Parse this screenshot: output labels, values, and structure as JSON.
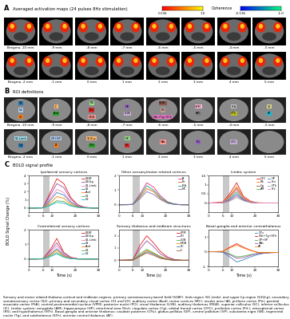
{
  "slice_labels": [
    "Bregma -10 mm",
    "-9 mm",
    "-8 mm",
    "-7 mm",
    "-6 mm",
    "-5 mm",
    "-4 mm",
    "-3 mm",
    "Bregma -2 mm",
    "-1 mm",
    "0 mm",
    "1 mm",
    "2 mm",
    "3 mm",
    "4 mm",
    "5 mm"
  ],
  "panel_a": {
    "letter": "A",
    "title": "Averaged activation maps (24 pulses 8Hz stimulation)",
    "colorbar_label": "Coherence",
    "colorbars": [
      {
        "range": [
          0.136,
          1.0
        ],
        "ticks": [
          0.136,
          {
            "value": 1.0,
            "label": "1.0"
          }
        ],
        "color": "autumn"
      },
      {
        "range": [
          -0.136,
          -1.0
        ],
        "ticks": [
          -0.136,
          {
            "value": -1.0,
            "label": "-1.0"
          }
        ],
        "color": "winter"
      }
    ]
  },
  "panel_b": {
    "letter": "B",
    "title": "ROI definitions",
    "rois": [
      [
        "V1",
        "V2",
        "SC"
      ],
      [
        "IC",
        "Aud"
      ],
      [
        "RS",
        "Ent",
        "MGB"
      ],
      [
        "HP",
        "LGN"
      ],
      [
        "S1BF",
        "PO",
        "SNr+Tg+STh"
      ],
      [
        "VPM",
        "AM"
      ],
      [
        "PtA",
        "HTh"
      ],
      [
        "S2",
        "AT"
      ],
      [
        "S1-Limb",
        "Cg"
      ],
      [
        "GP+VP",
        "IA"
      ],
      [
        "S1ULp",
        "CPu"
      ],
      [
        "MC",
        "Pir"
      ],
      [
        "NAc"
      ],
      [
        "PrL"
      ],
      [
        "OFC"
      ],
      []
    ]
  },
  "panel_c": {
    "letter": "C",
    "title": "BOLD signal profile",
    "ylabel": "BOLD Signal Change (%)"
  },
  "chart_data": [
    {
      "type": "line",
      "title": "Ipsilateral sensory cortices",
      "x": [
        0,
        3,
        6,
        9,
        12,
        15,
        18,
        21,
        24,
        27,
        30
      ],
      "xlim": [
        0,
        30
      ],
      "xticks": [
        0,
        6,
        10,
        20,
        30
      ],
      "ylim": [
        -0.5,
        4
      ],
      "yticks": [
        0,
        1,
        2,
        3,
        4
      ],
      "stimulus_window": [
        6,
        9
      ],
      "legend": "upper right",
      "series": [
        {
          "name": "S1BF",
          "color": "#e41a1c",
          "values": [
            0,
            0.02,
            0.05,
            1.8,
            3.6,
            3.0,
            1.3,
            0.4,
            0.1,
            0.02,
            0
          ]
        },
        {
          "name": "S1ULp",
          "color": "#984ea3",
          "values": [
            0,
            0.01,
            0.04,
            1.5,
            3.0,
            2.5,
            1.1,
            0.35,
            0.08,
            0.02,
            0
          ]
        },
        {
          "name": "S1-Limb",
          "color": "#f781bf",
          "values": [
            0,
            0,
            0.03,
            1.1,
            2.3,
            1.9,
            0.8,
            0.25,
            0.06,
            0,
            0
          ]
        },
        {
          "name": "S2",
          "color": "#377eb8",
          "values": [
            0,
            0.01,
            0.03,
            0.9,
            1.9,
            1.6,
            0.7,
            0.2,
            0.05,
            0,
            -0.02
          ]
        },
        {
          "name": "Aud",
          "color": "#ff7f00",
          "values": [
            0,
            0,
            0.02,
            0.6,
            1.4,
            1.2,
            0.5,
            0.15,
            0.03,
            0,
            0
          ]
        },
        {
          "name": "V1",
          "color": "#4daf4a",
          "values": [
            0,
            0,
            0.01,
            0.4,
            0.9,
            0.8,
            0.35,
            0.1,
            0.02,
            0,
            0
          ]
        },
        {
          "name": "V2",
          "color": "#1fb4c8",
          "values": [
            0,
            0,
            0.01,
            0.3,
            0.7,
            0.6,
            0.25,
            0.08,
            0.02,
            0,
            0
          ]
        }
      ]
    },
    {
      "type": "line",
      "title": "Other sensory/motor related cortices",
      "x": [
        0,
        3,
        6,
        9,
        12,
        15,
        18,
        21,
        24,
        27,
        30
      ],
      "xlim": [
        0,
        30
      ],
      "xticks": [
        0,
        6,
        10,
        20,
        30
      ],
      "ylim": [
        -0.5,
        2
      ],
      "yticks": [
        0,
        1,
        2
      ],
      "stimulus_window": [
        6,
        9
      ],
      "legend": "upper right",
      "series": [
        {
          "name": "IA",
          "color": "#e7298a",
          "values": [
            0,
            0.02,
            0.04,
            0.7,
            1.5,
            1.2,
            0.6,
            0.2,
            0.05,
            0,
            0
          ]
        },
        {
          "name": "Pir",
          "color": "#d95f02",
          "values": [
            0,
            0,
            0.02,
            0.5,
            1.1,
            0.9,
            0.4,
            0.15,
            0.03,
            0,
            0
          ]
        },
        {
          "name": "PtA",
          "color": "#1b9e77",
          "values": [
            0,
            0.01,
            0.03,
            0.6,
            1.3,
            1.0,
            0.5,
            0.18,
            0.05,
            0.01,
            0
          ]
        },
        {
          "name": "MC",
          "color": "#7570b3",
          "values": [
            0,
            0,
            0.02,
            0.4,
            0.9,
            0.7,
            0.35,
            0.1,
            0.02,
            0,
            0
          ]
        }
      ]
    },
    {
      "type": "line",
      "title": "Limbic system",
      "x": [
        0,
        3,
        6,
        9,
        12,
        15,
        18,
        21,
        24,
        27,
        30
      ],
      "xlim": [
        0,
        30
      ],
      "xticks": [
        0,
        6,
        10,
        20,
        30
      ],
      "ylim": [
        -0.5,
        1.5
      ],
      "yticks": [
        0,
        0.5,
        1,
        1.5
      ],
      "stimulus_window": [
        6,
        9
      ],
      "legend": "upper right",
      "series": [
        {
          "name": "OFC",
          "color": "#e41a1c",
          "values": [
            0,
            0.02,
            0.05,
            0.5,
            1.1,
            0.35,
            0.1,
            0,
            0,
            0,
            0
          ]
        },
        {
          "name": "RS",
          "color": "#ff7f00",
          "values": [
            0,
            0.01,
            0.03,
            0.4,
            0.9,
            0.3,
            0.08,
            0.02,
            0,
            0,
            0
          ]
        },
        {
          "name": "Cg",
          "color": "#a65628",
          "values": [
            0,
            0,
            0.02,
            0.35,
            0.8,
            0.25,
            0.05,
            0,
            0,
            0,
            0
          ]
        },
        {
          "name": "AM",
          "color": "#4daf4a",
          "values": [
            0,
            0,
            0.01,
            0.25,
            0.6,
            0.2,
            0.05,
            0,
            0,
            0,
            0
          ]
        },
        {
          "name": "HP",
          "color": "#377eb8",
          "values": [
            0,
            0,
            0.01,
            0.2,
            0.5,
            0.18,
            0.04,
            0,
            0,
            0,
            0
          ]
        },
        {
          "name": "Ent",
          "color": "#984ea3",
          "values": [
            0,
            0,
            0.01,
            0.15,
            0.4,
            0.15,
            0.03,
            0,
            0,
            0,
            0
          ]
        },
        {
          "name": "HTh",
          "color": "#999999",
          "values": [
            0,
            0,
            0,
            0.1,
            0.3,
            0.12,
            0.02,
            0,
            0,
            0,
            0
          ]
        },
        {
          "name": "PrL",
          "color": "#f781bf",
          "values": [
            0,
            0.01,
            0.02,
            0.3,
            0.7,
            0.25,
            0.06,
            0.01,
            0,
            0,
            0
          ]
        }
      ]
    },
    {
      "type": "line",
      "title": "Contralateral sensory cortices",
      "x": [
        0,
        3,
        6,
        9,
        12,
        15,
        18,
        21,
        24,
        27,
        30
      ],
      "xlim": [
        0,
        30
      ],
      "xticks": [
        0,
        6,
        10,
        20,
        30
      ],
      "ylim": [
        -0.5,
        2
      ],
      "yticks": [
        0,
        1,
        2
      ],
      "stimulus_window": [
        6,
        9
      ],
      "legend": "upper right",
      "xlabel": "Time (s)",
      "series": [
        {
          "name": "S1BF",
          "color": "#e41a1c",
          "values": [
            0,
            0.01,
            0.03,
            0.6,
            1.4,
            0.45,
            0.12,
            0.02,
            0,
            0,
            0
          ]
        },
        {
          "name": "S1ULp",
          "color": "#984ea3",
          "values": [
            0,
            0,
            0.02,
            0.5,
            1.1,
            0.4,
            0.1,
            0.02,
            0,
            0,
            0
          ]
        },
        {
          "name": "S1-Limb",
          "color": "#f781bf",
          "values": [
            0,
            0,
            0.02,
            0.4,
            0.9,
            0.3,
            0.08,
            0,
            0,
            0,
            0
          ]
        },
        {
          "name": "S2",
          "color": "#377eb8",
          "values": [
            0,
            0,
            0.01,
            0.3,
            0.7,
            0.25,
            0.05,
            0,
            0,
            0,
            0
          ]
        },
        {
          "name": "Aud",
          "color": "#ff7f00",
          "values": [
            0,
            0,
            0.01,
            0.25,
            0.6,
            0.2,
            0.05,
            0,
            0,
            0,
            0
          ]
        },
        {
          "name": "V1",
          "color": "#4daf4a",
          "values": [
            0,
            0,
            0.01,
            0.2,
            0.45,
            0.15,
            0.03,
            0,
            0,
            0,
            0
          ]
        },
        {
          "name": "V2",
          "color": "#1fb4c8",
          "values": [
            0,
            0,
            0,
            0.15,
            0.35,
            0.12,
            0.02,
            0,
            0,
            0,
            0
          ]
        }
      ]
    },
    {
      "type": "line",
      "title": "Sensory thalamus and midbrain structures",
      "x": [
        0,
        3,
        6,
        9,
        12,
        15,
        18,
        21,
        24,
        27,
        30
      ],
      "xlim": [
        0,
        30
      ],
      "xticks": [
        0,
        6,
        10,
        20,
        30
      ],
      "ylim": [
        -0.5,
        2.5
      ],
      "yticks": [
        0,
        1,
        2
      ],
      "stimulus_window": [
        6,
        9
      ],
      "legend": "upper right",
      "xlabel": "Time (s)",
      "series": [
        {
          "name": "VPM",
          "color": "#e41a1c",
          "values": [
            0,
            0.02,
            0.05,
            1.2,
            2.0,
            1.4,
            0.7,
            0.25,
            0.06,
            0,
            0
          ]
        },
        {
          "name": "PO",
          "color": "#984ea3",
          "values": [
            0,
            0.01,
            0.04,
            0.9,
            1.6,
            1.1,
            0.5,
            0.2,
            0.05,
            0,
            0
          ]
        },
        {
          "name": "LGN",
          "color": "#4daf4a",
          "values": [
            0,
            0,
            0.02,
            0.5,
            0.9,
            0.6,
            0.3,
            0.1,
            0.02,
            0,
            0
          ]
        },
        {
          "name": "MGB",
          "color": "#ff7f00",
          "values": [
            0,
            0,
            0.02,
            0.4,
            0.8,
            0.55,
            0.25,
            0.08,
            0,
            0,
            0
          ]
        },
        {
          "name": "SC",
          "color": "#377eb8",
          "values": [
            0,
            0,
            0.01,
            0.35,
            0.7,
            0.5,
            0.2,
            0.05,
            0,
            0,
            0
          ]
        },
        {
          "name": "IC",
          "color": "#a65628",
          "values": [
            0,
            0,
            0.01,
            0.3,
            0.6,
            0.4,
            0.15,
            0.05,
            0,
            0,
            0
          ]
        }
      ]
    },
    {
      "type": "line",
      "title": "Basal-ganglia and anterior centrathalamus",
      "x": [
        0,
        3,
        6,
        9,
        12,
        15,
        18,
        21,
        24,
        27,
        30
      ],
      "xlim": [
        0,
        30
      ],
      "xticks": [
        0,
        6,
        10,
        20,
        30
      ],
      "ylim": [
        -1,
        1.5
      ],
      "yticks": [
        -1,
        0,
        1
      ],
      "stimulus_window": [
        6,
        9
      ],
      "legend": "upper right",
      "xlabel": "Time (s)",
      "series": [
        {
          "name": "CPu",
          "color": "#377eb8",
          "values": [
            0,
            -0.01,
            -0.03,
            -0.35,
            -0.7,
            -0.55,
            -0.35,
            -0.2,
            -0.1,
            -0.06,
            -0.05
          ]
        },
        {
          "name": "SNr+Tg+STh",
          "color": "#e41a1c",
          "values": [
            0,
            0.01,
            0.02,
            0.3,
            0.55,
            0.3,
            0.1,
            -0.05,
            -0.08,
            -0.06,
            -0.05
          ]
        },
        {
          "name": "GP+VP",
          "color": "#4daf4a",
          "values": [
            0,
            0,
            -0.01,
            -0.15,
            -0.35,
            -0.3,
            -0.2,
            -0.12,
            -0.08,
            -0.06,
            -0.05
          ]
        },
        {
          "name": "NAc",
          "color": "#984ea3",
          "values": [
            0,
            0,
            -0.01,
            -0.2,
            -0.45,
            -0.4,
            -0.25,
            -0.12,
            -0.08,
            -0.06,
            -0.05
          ]
        },
        {
          "name": "AT",
          "color": "#ff7f00",
          "values": [
            0,
            0.01,
            0.02,
            0.25,
            0.45,
            0.25,
            0.08,
            -0.04,
            -0.06,
            -0.05,
            -0.05
          ]
        }
      ]
    }
  ],
  "caption": "Sensory and motor related thalamo-cortical and midbrain regions: primary somatosensory-barrel field (S1BF), limb region (S1-Limb), and upper lip region (S1ULp), secondary somatosensory cortex (S2), primary and secondary visual cortex (V1 and V2), auditory cortex (Aud), motor cortices (MC), insular area (IA), piriform cortex (Pir), parietal associate cortex (PtA), ventral posteromedial nucleus (VPM), posterior nuclei (PO), visual thalamus (LGN), auditory thalamus (MGB), superior colliculus (SC), inferior colliculus (IC). Limbic system: amygdala (AM), hippocampus (HP), entorhinal area (Ent), cingulate cortex (Cg), orbital frontal cortex (OFC), prelimbic cortex (PrL), retrosplenial cortex (RS), and hypothalamus (HTh). Basal ganglia and anterior thalamus: caudate putamen (CPu), globus pallidus (GP), ventral pallidum (VP), substantia nigra (SN), tegmental nuclei (Tg), and subthalamus (STh), anterior central thalamus (AT)."
}
